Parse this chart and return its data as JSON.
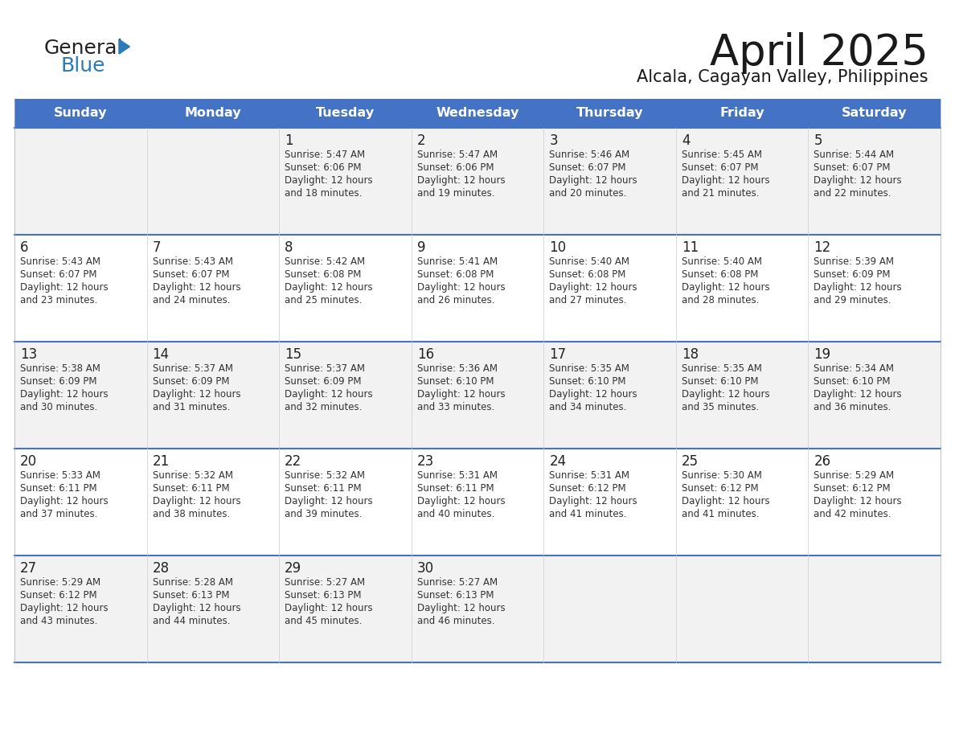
{
  "title": "April 2025",
  "subtitle": "Alcala, Cagayan Valley, Philippines",
  "header_bg": "#4472C4",
  "header_text_color": "#FFFFFF",
  "header_days": [
    "Sunday",
    "Monday",
    "Tuesday",
    "Wednesday",
    "Thursday",
    "Friday",
    "Saturday"
  ],
  "row_bg_light": "#F2F2F2",
  "row_bg_white": "#FFFFFF",
  "divider_color": "#4472C4",
  "text_color": "#333333",
  "cal_data": [
    [
      {
        "day": "",
        "sunrise": "",
        "sunset": "",
        "daylight_hours": 0,
        "daylight_minutes": 0
      },
      {
        "day": "",
        "sunrise": "",
        "sunset": "",
        "daylight_hours": 0,
        "daylight_minutes": 0
      },
      {
        "day": "1",
        "sunrise": "5:47 AM",
        "sunset": "6:06 PM",
        "daylight_hours": 12,
        "daylight_minutes": 18
      },
      {
        "day": "2",
        "sunrise": "5:47 AM",
        "sunset": "6:06 PM",
        "daylight_hours": 12,
        "daylight_minutes": 19
      },
      {
        "day": "3",
        "sunrise": "5:46 AM",
        "sunset": "6:07 PM",
        "daylight_hours": 12,
        "daylight_minutes": 20
      },
      {
        "day": "4",
        "sunrise": "5:45 AM",
        "sunset": "6:07 PM",
        "daylight_hours": 12,
        "daylight_minutes": 21
      },
      {
        "day": "5",
        "sunrise": "5:44 AM",
        "sunset": "6:07 PM",
        "daylight_hours": 12,
        "daylight_minutes": 22
      }
    ],
    [
      {
        "day": "6",
        "sunrise": "5:43 AM",
        "sunset": "6:07 PM",
        "daylight_hours": 12,
        "daylight_minutes": 23
      },
      {
        "day": "7",
        "sunrise": "5:43 AM",
        "sunset": "6:07 PM",
        "daylight_hours": 12,
        "daylight_minutes": 24
      },
      {
        "day": "8",
        "sunrise": "5:42 AM",
        "sunset": "6:08 PM",
        "daylight_hours": 12,
        "daylight_minutes": 25
      },
      {
        "day": "9",
        "sunrise": "5:41 AM",
        "sunset": "6:08 PM",
        "daylight_hours": 12,
        "daylight_minutes": 26
      },
      {
        "day": "10",
        "sunrise": "5:40 AM",
        "sunset": "6:08 PM",
        "daylight_hours": 12,
        "daylight_minutes": 27
      },
      {
        "day": "11",
        "sunrise": "5:40 AM",
        "sunset": "6:08 PM",
        "daylight_hours": 12,
        "daylight_minutes": 28
      },
      {
        "day": "12",
        "sunrise": "5:39 AM",
        "sunset": "6:09 PM",
        "daylight_hours": 12,
        "daylight_minutes": 29
      }
    ],
    [
      {
        "day": "13",
        "sunrise": "5:38 AM",
        "sunset": "6:09 PM",
        "daylight_hours": 12,
        "daylight_minutes": 30
      },
      {
        "day": "14",
        "sunrise": "5:37 AM",
        "sunset": "6:09 PM",
        "daylight_hours": 12,
        "daylight_minutes": 31
      },
      {
        "day": "15",
        "sunrise": "5:37 AM",
        "sunset": "6:09 PM",
        "daylight_hours": 12,
        "daylight_minutes": 32
      },
      {
        "day": "16",
        "sunrise": "5:36 AM",
        "sunset": "6:10 PM",
        "daylight_hours": 12,
        "daylight_minutes": 33
      },
      {
        "day": "17",
        "sunrise": "5:35 AM",
        "sunset": "6:10 PM",
        "daylight_hours": 12,
        "daylight_minutes": 34
      },
      {
        "day": "18",
        "sunrise": "5:35 AM",
        "sunset": "6:10 PM",
        "daylight_hours": 12,
        "daylight_minutes": 35
      },
      {
        "day": "19",
        "sunrise": "5:34 AM",
        "sunset": "6:10 PM",
        "daylight_hours": 12,
        "daylight_minutes": 36
      }
    ],
    [
      {
        "day": "20",
        "sunrise": "5:33 AM",
        "sunset": "6:11 PM",
        "daylight_hours": 12,
        "daylight_minutes": 37
      },
      {
        "day": "21",
        "sunrise": "5:32 AM",
        "sunset": "6:11 PM",
        "daylight_hours": 12,
        "daylight_minutes": 38
      },
      {
        "day": "22",
        "sunrise": "5:32 AM",
        "sunset": "6:11 PM",
        "daylight_hours": 12,
        "daylight_minutes": 39
      },
      {
        "day": "23",
        "sunrise": "5:31 AM",
        "sunset": "6:11 PM",
        "daylight_hours": 12,
        "daylight_minutes": 40
      },
      {
        "day": "24",
        "sunrise": "5:31 AM",
        "sunset": "6:12 PM",
        "daylight_hours": 12,
        "daylight_minutes": 41
      },
      {
        "day": "25",
        "sunrise": "5:30 AM",
        "sunset": "6:12 PM",
        "daylight_hours": 12,
        "daylight_minutes": 41
      },
      {
        "day": "26",
        "sunrise": "5:29 AM",
        "sunset": "6:12 PM",
        "daylight_hours": 12,
        "daylight_minutes": 42
      }
    ],
    [
      {
        "day": "27",
        "sunrise": "5:29 AM",
        "sunset": "6:12 PM",
        "daylight_hours": 12,
        "daylight_minutes": 43
      },
      {
        "day": "28",
        "sunrise": "5:28 AM",
        "sunset": "6:13 PM",
        "daylight_hours": 12,
        "daylight_minutes": 44
      },
      {
        "day": "29",
        "sunrise": "5:27 AM",
        "sunset": "6:13 PM",
        "daylight_hours": 12,
        "daylight_minutes": 45
      },
      {
        "day": "30",
        "sunrise": "5:27 AM",
        "sunset": "6:13 PM",
        "daylight_hours": 12,
        "daylight_minutes": 46
      },
      {
        "day": "",
        "sunrise": "",
        "sunset": "",
        "daylight_hours": 0,
        "daylight_minutes": 0
      },
      {
        "day": "",
        "sunrise": "",
        "sunset": "",
        "daylight_hours": 0,
        "daylight_minutes": 0
      },
      {
        "day": "",
        "sunrise": "",
        "sunset": "",
        "daylight_hours": 0,
        "daylight_minutes": 0
      }
    ]
  ],
  "logo_color_general": "#222222",
  "logo_color_blue": "#2B7BB9",
  "logo_triangle_color": "#2B7BB9"
}
